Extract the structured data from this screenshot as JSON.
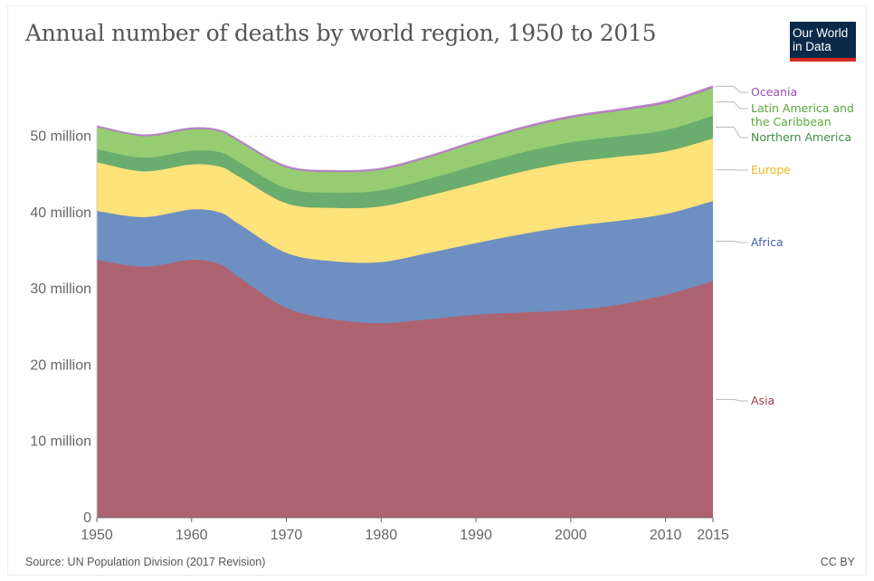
{
  "chart_data": {
    "type": "area",
    "stacked": true,
    "title": "Annual number of deaths by world region, 1950 to 2015",
    "xlabel": "",
    "ylabel": "",
    "x": [
      1950,
      1955,
      1960,
      1963,
      1965,
      1970,
      1975,
      1980,
      1985,
      1990,
      1995,
      2000,
      2005,
      2010,
      2015
    ],
    "xlim": [
      1950,
      2015
    ],
    "ylim": [
      0,
      56000000
    ],
    "x_ticks": [
      {
        "value": 1950,
        "label": "1950"
      },
      {
        "value": 1960,
        "label": "1960"
      },
      {
        "value": 1970,
        "label": "1970"
      },
      {
        "value": 1980,
        "label": "1980"
      },
      {
        "value": 1990,
        "label": "1990"
      },
      {
        "value": 2000,
        "label": "2000"
      },
      {
        "value": 2010,
        "label": "2010"
      },
      {
        "value": 2015,
        "label": "2015"
      }
    ],
    "y_ticks": [
      {
        "value": 0,
        "label": "0"
      },
      {
        "value": 10000000,
        "label": "10 million"
      },
      {
        "value": 20000000,
        "label": "20 million"
      },
      {
        "value": 30000000,
        "label": "30 million"
      },
      {
        "value": 40000000,
        "label": "40 million"
      },
      {
        "value": 50000000,
        "label": "50 million"
      }
    ],
    "grid": "horizontal-dashed",
    "legend": "right-end-labels",
    "series": [
      {
        "name": "Asia",
        "color": "#ae6370",
        "label_color": "#9a3b4b",
        "values": [
          33800000,
          32900000,
          33800000,
          33200000,
          31500000,
          27500000,
          26000000,
          25500000,
          26000000,
          26600000,
          26900000,
          27200000,
          27900000,
          29200000,
          31000000
        ]
      },
      {
        "name": "Africa",
        "color": "#6e8fc2",
        "label_color": "#3f62a0",
        "values": [
          6400000,
          6500000,
          6600000,
          6800000,
          7000000,
          7200000,
          7600000,
          8000000,
          8700000,
          9400000,
          10300000,
          11000000,
          11000000,
          10600000,
          10500000
        ]
      },
      {
        "name": "Europe",
        "color": "#fee27a",
        "label_color": "#f1b81a",
        "values": [
          6400000,
          6000000,
          5900000,
          6000000,
          6200000,
          6500000,
          7000000,
          7300000,
          7500000,
          7800000,
          8200000,
          8400000,
          8400000,
          8200000,
          8200000
        ]
      },
      {
        "name": "Northern America",
        "color": "#6aad6e",
        "label_color": "#3f8f45",
        "values": [
          1700000,
          1800000,
          1800000,
          1900000,
          1900000,
          2000000,
          2000000,
          2100000,
          2200000,
          2400000,
          2500000,
          2600000,
          2700000,
          2800000,
          3000000
        ]
      },
      {
        "name": "Latin America and the Caribbean",
        "color": "#96cd72",
        "label_color": "#5aa83a",
        "values": [
          2900000,
          2800000,
          2800000,
          2700000,
          2700000,
          2700000,
          2700000,
          2700000,
          2800000,
          3000000,
          3100000,
          3200000,
          3300000,
          3500000,
          3600000
        ]
      },
      {
        "name": "Oceania",
        "color": "#b47fc0",
        "label_color": "#9a4fab",
        "values": [
          120000,
          130000,
          140000,
          145000,
          150000,
          150000,
          150000,
          160000,
          170000,
          180000,
          190000,
          200000,
          210000,
          230000,
          250000
        ]
      }
    ]
  },
  "source": "Source: UN Population Division (2017 Revision)",
  "license": "CC BY",
  "logo": {
    "line1": "Our World",
    "line2": "in Data",
    "bg_color": "#0b2a4a",
    "accent_color": "#d42b21"
  }
}
